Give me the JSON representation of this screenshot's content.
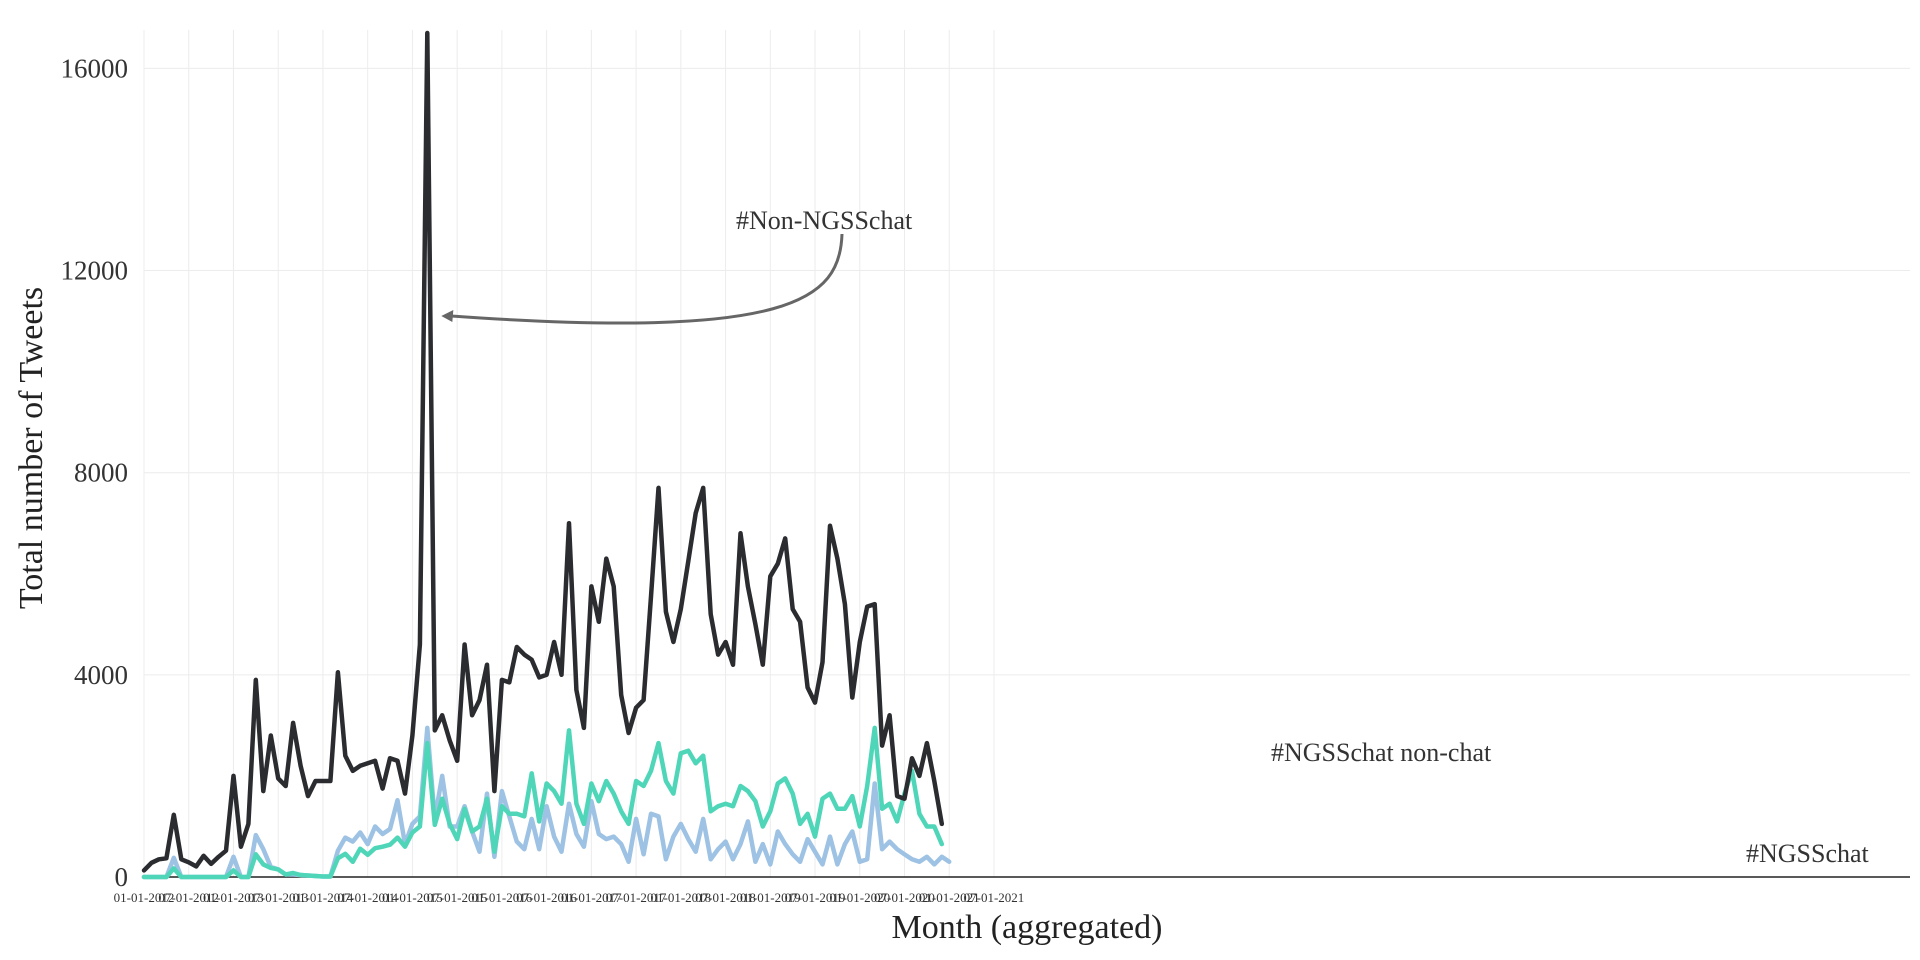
{
  "chart_data": {
    "type": "line",
    "title": "",
    "xlabel": "Month (aggregated)",
    "ylabel": "Total number of Tweets",
    "xlim": [
      "2012-01-01",
      "2021-10-01"
    ],
    "ylim": [
      0,
      16700
    ],
    "yticks": [
      0,
      4000,
      8000,
      12000,
      16000
    ],
    "ytick_labels": [
      "0",
      "4000",
      "8000",
      "12000",
      "16000"
    ],
    "xticks": [
      "2012-01-01",
      "2012-07-01",
      "2013-01-01",
      "2013-07-01",
      "2014-01-01",
      "2014-07-01",
      "2015-01-01",
      "2015-07-01",
      "2016-01-01",
      "2016-07-01",
      "2017-01-01",
      "2017-07-01",
      "2018-01-01",
      "2018-07-01",
      "2019-01-01",
      "2019-07-01",
      "2020-01-01",
      "2020-07-01",
      "2021-01-01",
      "2021-07-01"
    ],
    "xtick_labels": [
      "01-01-2012",
      "07-01-2012",
      "01-01-2013",
      "07-01-2013",
      "01-01-2014",
      "07-01-2014",
      "01-01-2015",
      "07-01-2015",
      "01-01-2016",
      "07-01-2016",
      "01-01-2017",
      "07-01-2017",
      "01-01-2018",
      "07-01-2018",
      "01-01-2019",
      "07-01-2019",
      "01-01-2020",
      "07-01-2020",
      "01-01-2021",
      "07-01-2021"
    ],
    "grid": true,
    "legend": "direct labels",
    "x_start": "2012-01",
    "series": [
      {
        "name": "#Non-NGSSchat",
        "color": "#2b2c30",
        "values": [
          130,
          280,
          350,
          370,
          1230,
          350,
          290,
          210,
          420,
          260,
          400,
          520,
          2000,
          600,
          1050,
          3900,
          1700,
          2800,
          1950,
          1800,
          3050,
          2200,
          1600,
          1900,
          1900,
          1900,
          4050,
          2400,
          2100,
          2200,
          2250,
          2300,
          1750,
          2350,
          2300,
          1650,
          2800,
          4600,
          16700,
          2900,
          3200,
          2700,
          2300,
          4600,
          3200,
          3500,
          4200,
          1700,
          3900,
          3850,
          4550,
          4400,
          4300,
          3950,
          4000,
          4650,
          4000,
          7000,
          3700,
          2950,
          5750,
          5050,
          6300,
          5750,
          3600,
          2850,
          3350,
          3500,
          5550,
          7700,
          5250,
          4650,
          5300,
          6250,
          7200,
          7700,
          5200,
          4400,
          4650,
          4200,
          6800,
          5750,
          5000,
          4200,
          5950,
          6200,
          6700,
          5300,
          5050,
          3750,
          3450,
          4250,
          6950,
          6300,
          5400,
          3550,
          4650,
          5350,
          5400,
          2600,
          3200,
          1600,
          1550,
          2350,
          2000,
          2650,
          1900,
          1050
        ]
      },
      {
        "name": "#NGSSchat non-chat",
        "color": "#4fd6b9",
        "values": [
          0,
          0,
          0,
          0,
          170,
          0,
          0,
          0,
          0,
          0,
          0,
          0,
          130,
          0,
          0,
          450,
          250,
          180,
          150,
          50,
          80,
          40,
          30,
          20,
          10,
          10,
          370,
          460,
          300,
          560,
          440,
          570,
          600,
          640,
          780,
          600,
          880,
          1000,
          2650,
          1030,
          1550,
          1050,
          750,
          1350,
          900,
          1000,
          1550,
          500,
          1400,
          1250,
          1250,
          1200,
          2050,
          1100,
          1850,
          1700,
          1450,
          2900,
          1450,
          1050,
          1850,
          1500,
          1900,
          1650,
          1300,
          1050,
          1900,
          1800,
          2100,
          2650,
          1900,
          1650,
          2450,
          2500,
          2250,
          2400,
          1300,
          1400,
          1450,
          1400,
          1800,
          1700,
          1500,
          1000,
          1300,
          1850,
          1950,
          1650,
          1050,
          1250,
          800,
          1550,
          1650,
          1350,
          1350,
          1600,
          1000,
          1800,
          2950,
          1350,
          1450,
          1100,
          1650,
          2100,
          1250,
          1000,
          1000,
          650
        ]
      },
      {
        "name": "#NGSSchat",
        "color": "#9dc2e4",
        "values": [
          0,
          0,
          0,
          0,
          380,
          0,
          0,
          0,
          0,
          0,
          0,
          0,
          400,
          0,
          0,
          830,
          550,
          200,
          150,
          50,
          50,
          40,
          30,
          20,
          10,
          10,
          520,
          780,
          700,
          880,
          650,
          1000,
          850,
          950,
          1520,
          650,
          1050,
          1200,
          2950,
          1150,
          2000,
          1000,
          1000,
          1400,
          900,
          500,
          1650,
          400,
          1700,
          1200,
          700,
          550,
          1150,
          550,
          1400,
          800,
          500,
          1450,
          850,
          600,
          1500,
          850,
          750,
          800,
          650,
          300,
          1150,
          450,
          1250,
          1200,
          350,
          800,
          1050,
          750,
          500,
          1150,
          350,
          550,
          700,
          350,
          650,
          1100,
          300,
          650,
          250,
          900,
          650,
          450,
          300,
          750,
          500,
          250,
          800,
          250,
          650,
          900,
          300,
          350,
          1850,
          550,
          700,
          550,
          450,
          350,
          300,
          400,
          250,
          400,
          300
        ]
      }
    ],
    "annotations": [
      {
        "text": "#Non-NGSSchat",
        "target_x": "2015-03",
        "target_y": 11100
      },
      {
        "text": "#NGSSchat non-chat",
        "target_x": "2018-05",
        "target_y": 2400
      },
      {
        "text": "#NGSSchat",
        "target_x": "2020-12",
        "target_y": 450
      }
    ]
  }
}
